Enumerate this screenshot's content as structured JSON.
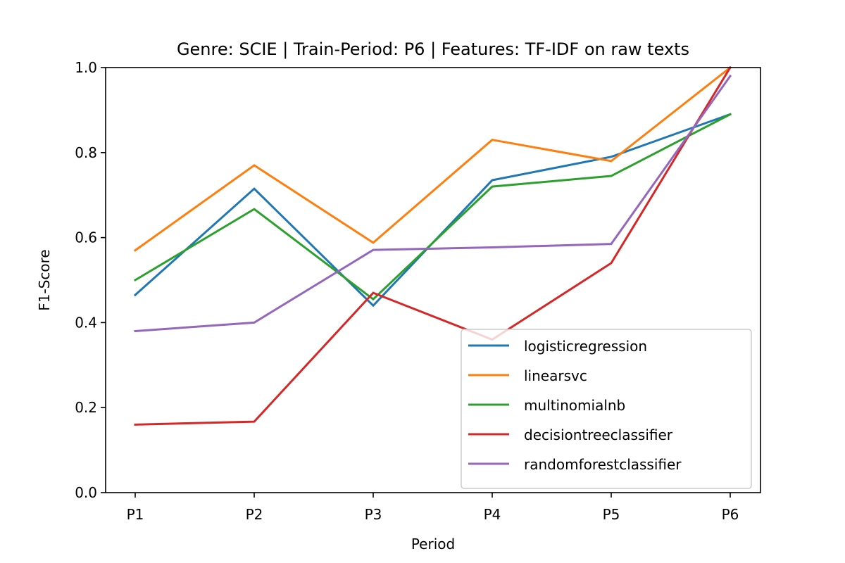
{
  "chart_data": {
    "type": "line",
    "title": "Genre: SCIE | Train-Period: P6 | Features: TF-IDF on raw texts",
    "xlabel": "Period",
    "ylabel": "F1-Score",
    "categories": [
      "P1",
      "P2",
      "P3",
      "P4",
      "P5",
      "P6"
    ],
    "ylim": [
      0.0,
      1.0
    ],
    "yticks": [
      "0.0",
      "0.2",
      "0.4",
      "0.6",
      "0.8",
      "1.0"
    ],
    "grid": false,
    "legend_position": "lower-right",
    "series": [
      {
        "name": "logisticregression",
        "color": "#1f77b4",
        "values": [
          0.465,
          0.715,
          0.44,
          0.735,
          0.79,
          0.89
        ]
      },
      {
        "name": "linearsvc",
        "color": "#ff7f0e",
        "values": [
          0.57,
          0.77,
          0.588,
          0.83,
          0.78,
          1.0
        ]
      },
      {
        "name": "multinomialnb",
        "color": "#2ca02c",
        "values": [
          0.5,
          0.667,
          0.455,
          0.72,
          0.745,
          0.89
        ]
      },
      {
        "name": "decisiontreeclassifier",
        "color": "#d62728",
        "values": [
          0.16,
          0.167,
          0.47,
          0.36,
          0.54,
          1.0
        ]
      },
      {
        "name": "randomforestclassifier",
        "color": "#9467bd",
        "values": [
          0.38,
          0.4,
          0.571,
          0.577,
          0.585,
          0.98
        ]
      }
    ]
  }
}
